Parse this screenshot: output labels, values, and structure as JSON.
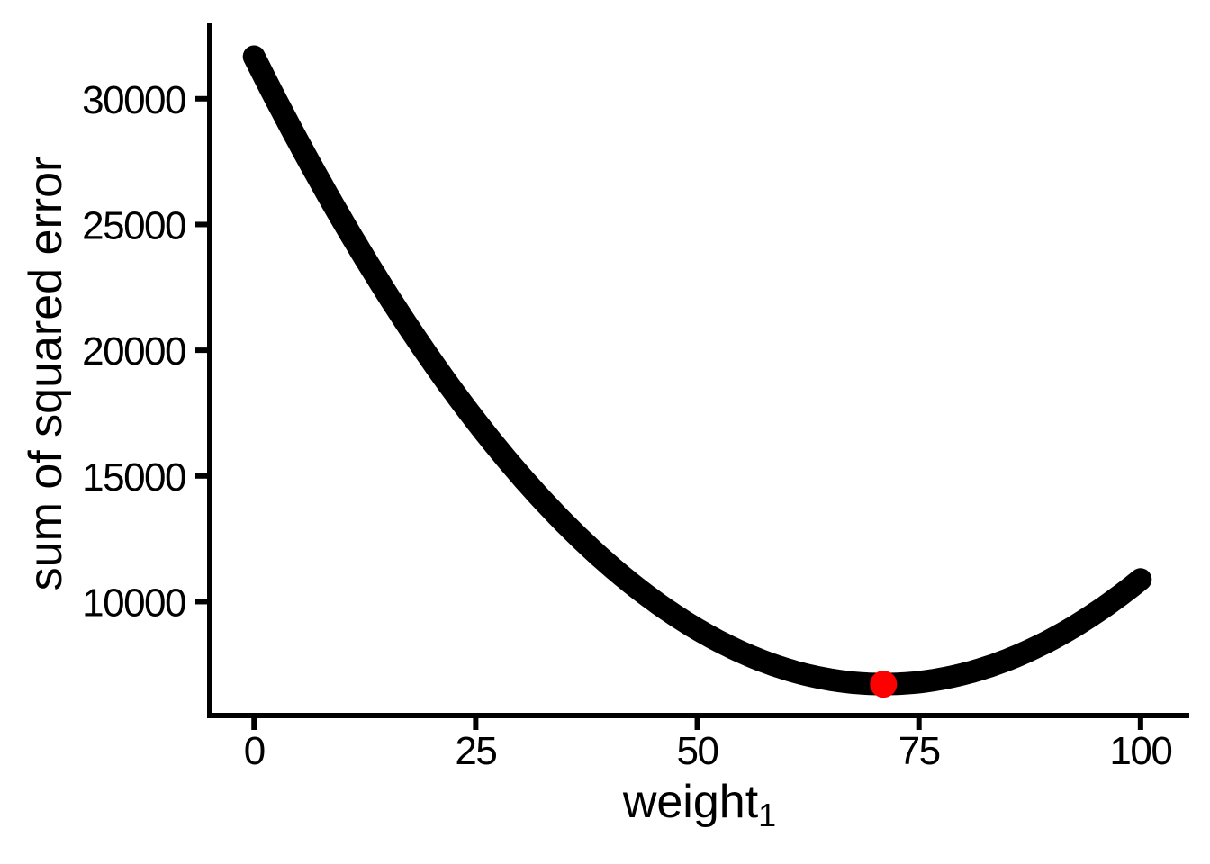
{
  "chart_data": {
    "type": "line",
    "title": "",
    "xlabel": "weight",
    "xlabel_sub": "1",
    "ylabel": "sum of squared error",
    "x_ticks": [
      0,
      25,
      50,
      75,
      100
    ],
    "x_tick_labels": [
      "0",
      "25",
      "50",
      "75",
      "100"
    ],
    "y_ticks": [
      10000,
      15000,
      20000,
      25000,
      30000
    ],
    "y_tick_labels": [
      "10000",
      "15000",
      "20000",
      "25000",
      "30000"
    ],
    "xlim": [
      -5,
      105.5
    ],
    "ylim": [
      5470,
      33035
    ],
    "grid": false,
    "legend": "none",
    "background_color": "#FFFFFF",
    "axis_color": "#000000",
    "curve": {
      "name": "sum-of-squared-error-vs-weight1",
      "formula": "sse = 4.95 * (weight1 - 71)^2 + 6720",
      "a": 4.95,
      "vertex_x": 71,
      "vertex_y": 6720,
      "x_range": [
        0,
        100
      ],
      "color": "#000000",
      "stroke_width": 25,
      "x": [
        0,
        5,
        10,
        15,
        20,
        25,
        30,
        35,
        40,
        45,
        50,
        55,
        60,
        65,
        70,
        75,
        80,
        85,
        90,
        95,
        100
      ],
      "y": [
        31673,
        28282,
        25139,
        22243,
        19595,
        17194,
        15041,
        13135,
        11477,
        10066,
        8903,
        7987,
        7319,
        6898,
        6725,
        6799,
        7121,
        7690,
        8507,
        9571,
        10883
      ]
    },
    "minimum_point": {
      "x": 71,
      "y": 6720,
      "color": "#FF0000",
      "radius": 15
    }
  }
}
